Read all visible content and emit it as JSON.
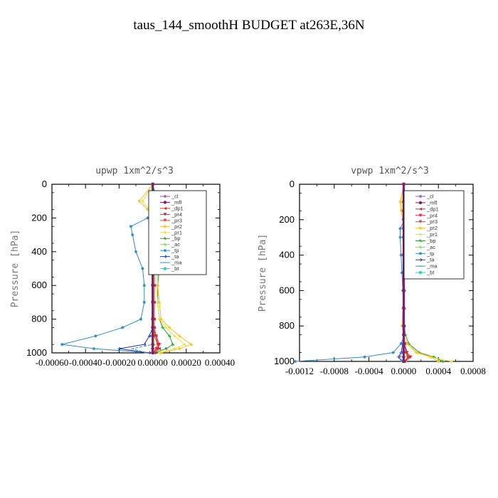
{
  "figure": {
    "title": "taus_144_smoothH  BUDGET at263E,36N"
  },
  "legend_labels": [
    "_cl",
    "_mfl",
    "_dp1",
    "_pr4",
    "_pr3",
    "_pr2",
    "_pr1",
    "_bp",
    "_ac",
    "_tp",
    "_ta",
    "_ma",
    "_bt"
  ],
  "legend_colors": [
    "#9b59b6",
    "#7b1f6e",
    "#c0392b",
    "#e8174f",
    "#e83a2e",
    "#f0c020",
    "#e8e040",
    "#2ca02c",
    "#8cd94a",
    "#2a8cc4",
    "#1f3fa8",
    "#3f8fbf",
    "#20d0e0"
  ],
  "chart_data": [
    {
      "type": "line",
      "title": "upwp   1xm^2/s^3",
      "xlabel": "",
      "ylabel": "Pressure [hPa]",
      "xlim": [
        -0.0006,
        0.0004
      ],
      "ylim": [
        1000,
        0
      ],
      "x_ticks": [
        -0.0006,
        -0.0004,
        -0.0002,
        0.0,
        0.0002,
        0.0004
      ],
      "x_tick_labels": [
        "-0.00060",
        "-0.00040",
        "-0.00020",
        "0.00000",
        "0.00020",
        "0.00040"
      ],
      "y_ticks": [
        0,
        200,
        400,
        600,
        800,
        1000
      ],
      "y_tick_labels": [
        "0",
        "200",
        "400",
        "600",
        "800",
        "1000"
      ],
      "grid": false,
      "legend_position": "top-right",
      "pressure": [
        0,
        100,
        150,
        200,
        250,
        300,
        400,
        500,
        600,
        700,
        800,
        850,
        900,
        950,
        975,
        1000
      ],
      "series": [
        {
          "name": "_cl",
          "values": [
            0,
            0,
            0,
            0,
            0,
            0,
            0,
            0,
            0,
            0,
            0,
            0,
            0,
            0,
            0,
            0
          ]
        },
        {
          "name": "_mfl",
          "values": [
            0,
            0,
            0,
            0,
            0,
            0,
            0,
            0,
            0,
            0,
            0,
            0,
            0,
            0,
            0,
            0
          ]
        },
        {
          "name": "_dp1",
          "values": [
            0,
            1e-05,
            1e-05,
            1e-05,
            1e-05,
            1e-05,
            1e-05,
            1e-05,
            1e-05,
            1e-05,
            1e-05,
            1e-05,
            2e-05,
            3e-05,
            4e-05,
            1e-05
          ]
        },
        {
          "name": "_pr4",
          "values": [
            0,
            -1e-05,
            -1e-05,
            0,
            0,
            0,
            0,
            0,
            0,
            0,
            0,
            0,
            2e-05,
            4e-05,
            3e-05,
            0
          ]
        },
        {
          "name": "_pr3",
          "values": [
            0,
            -1e-05,
            -1e-05,
            0,
            0,
            0,
            0,
            0,
            0,
            0,
            0,
            0,
            1e-05,
            3e-05,
            2e-05,
            0
          ]
        },
        {
          "name": "_pr2",
          "values": [
            0,
            -8e-05,
            -3e-05,
            2e-05,
            2e-05,
            3e-05,
            3e-05,
            3e-05,
            3e-05,
            4e-05,
            5e-05,
            0.0001,
            0.00016,
            0.00023,
            0.00016,
            5e-05
          ]
        },
        {
          "name": "_pr1",
          "values": [
            0,
            -6e-05,
            -2e-05,
            2e-05,
            2e-05,
            2e-05,
            2e-05,
            2e-05,
            2e-05,
            3e-05,
            4e-05,
            8e-05,
            0.00013,
            0.00019,
            0.00013,
            4e-05
          ]
        },
        {
          "name": "_bp",
          "values": [
            0,
            2e-05,
            3e-05,
            4e-05,
            5e-05,
            5e-05,
            4e-05,
            4e-05,
            3e-05,
            3e-05,
            4e-05,
            6e-05,
            0.0001,
            0.00012,
            8e-05,
            1e-05
          ]
        },
        {
          "name": "_ac",
          "values": [
            0,
            0,
            0,
            1e-05,
            1e-05,
            1e-05,
            1e-05,
            1e-05,
            1e-05,
            1e-05,
            1e-05,
            1e-05,
            1e-05,
            1e-05,
            0,
            0
          ]
        },
        {
          "name": "_tp",
          "values": [
            0,
            3e-05,
            1e-05,
            -3e-05,
            -0.00013,
            -0.00012,
            -0.0001,
            -6e-05,
            -5e-05,
            -5e-05,
            -7e-05,
            -0.00018,
            -0.00034,
            -0.00054,
            -0.00035,
            0
          ]
        },
        {
          "name": "_ta",
          "values": [
            0,
            0,
            0,
            0,
            0,
            0,
            0,
            0,
            0,
            0,
            0,
            0,
            -2e-05,
            -5e-05,
            -0.0002,
            -2e-05
          ]
        },
        {
          "name": "_ma",
          "values": [
            0,
            0,
            0,
            0,
            0,
            0,
            0,
            0,
            0,
            0,
            0,
            0,
            0,
            0,
            -0.00012,
            -4e-05
          ]
        },
        {
          "name": "_bt",
          "values": [
            0,
            0,
            0,
            0,
            0,
            0,
            0,
            0,
            0,
            0,
            0,
            0,
            0,
            0,
            0,
            0
          ]
        }
      ]
    },
    {
      "type": "line",
      "title": "vpwp   1xm^2/s^3",
      "xlabel": "",
      "ylabel": "Pressure [hPa]",
      "xlim": [
        -0.0012,
        0.0008
      ],
      "ylim": [
        1000,
        0
      ],
      "x_ticks": [
        -0.0012,
        -0.0008,
        -0.0004,
        0.0,
        0.0004,
        0.0008
      ],
      "x_tick_labels": [
        "-0.0012",
        "-0.0008",
        "-0.0004",
        "0.0000",
        "0.0004",
        "0.0008"
      ],
      "y_ticks": [
        0,
        200,
        400,
        600,
        800,
        1000
      ],
      "y_tick_labels": [
        "0",
        "200",
        "400",
        "600",
        "800",
        "1000"
      ],
      "grid": false,
      "legend_position": "top-right",
      "pressure": [
        0,
        100,
        150,
        200,
        250,
        300,
        400,
        500,
        600,
        700,
        800,
        850,
        900,
        950,
        975,
        1000
      ],
      "series": [
        {
          "name": "_cl",
          "values": [
            0,
            0,
            0,
            0,
            0,
            0,
            0,
            0,
            0,
            0,
            0,
            0,
            0,
            0,
            0,
            0
          ]
        },
        {
          "name": "_mfl",
          "values": [
            0,
            0,
            0,
            0,
            0,
            0,
            0,
            0,
            0,
            0,
            0,
            0,
            0,
            0,
            0,
            0
          ]
        },
        {
          "name": "_dp1",
          "values": [
            0,
            0,
            0,
            0,
            0,
            0,
            0,
            0,
            0,
            0,
            0,
            0,
            1e-05,
            3e-05,
            6e-05,
            1e-05
          ]
        },
        {
          "name": "_pr4",
          "values": [
            0,
            0,
            0,
            0,
            0,
            0,
            0,
            0,
            0,
            0,
            0,
            0,
            1e-05,
            4e-05,
            8e-05,
            2e-05
          ]
        },
        {
          "name": "_pr3",
          "values": [
            0,
            0,
            0,
            0,
            0,
            0,
            0,
            0,
            0,
            0,
            0,
            0,
            1e-05,
            3e-05,
            5e-05,
            1e-05
          ]
        },
        {
          "name": "_pr2",
          "values": [
            0,
            -4e-05,
            -3e-05,
            -1e-05,
            -1e-05,
            0,
            0,
            0,
            0,
            -1e-05,
            -2e-05,
            0,
            4e-05,
            0.00016,
            0.00032,
            0.0004
          ]
        },
        {
          "name": "_pr1",
          "values": [
            0,
            -3e-05,
            -2e-05,
            -1e-05,
            0,
            0,
            0,
            0,
            0,
            -1e-05,
            -1e-05,
            0,
            4e-05,
            0.00014,
            0.0003,
            0.00055
          ]
        },
        {
          "name": "_bp",
          "values": [
            0,
            0,
            0,
            1e-05,
            1e-05,
            1e-05,
            1e-05,
            1e-05,
            1e-05,
            1e-05,
            1e-05,
            2e-05,
            6e-05,
            0.00018,
            0.00035,
            0.00045
          ]
        },
        {
          "name": "_ac",
          "values": [
            0,
            0,
            0,
            0,
            0,
            0,
            0,
            0,
            0,
            0,
            0,
            0,
            1e-05,
            2e-05,
            4e-05,
            2e-05
          ]
        },
        {
          "name": "_tp",
          "values": [
            0,
            3e-05,
            4e-05,
            1e-05,
            -4e-05,
            -4e-05,
            -3e-05,
            -2e-05,
            -1e-05,
            0,
            1e-05,
            1e-05,
            -3e-05,
            -0.00012,
            -0.00045,
            -0.00125
          ]
        },
        {
          "name": "_ta",
          "values": [
            0,
            0,
            0,
            0,
            0,
            0,
            0,
            0,
            0,
            0,
            0,
            0,
            -1e-05,
            -3e-05,
            -6e-05,
            -2e-05
          ]
        },
        {
          "name": "_ma",
          "values": [
            0,
            0,
            0,
            0,
            0,
            0,
            0,
            0,
            0,
            0,
            0,
            0,
            0,
            -2e-05,
            -4e-05,
            -1e-05
          ]
        },
        {
          "name": "_bt",
          "values": [
            0,
            0,
            0,
            0,
            0,
            0,
            0,
            0,
            0,
            0,
            0,
            0,
            0,
            0,
            0,
            0
          ]
        }
      ]
    }
  ]
}
